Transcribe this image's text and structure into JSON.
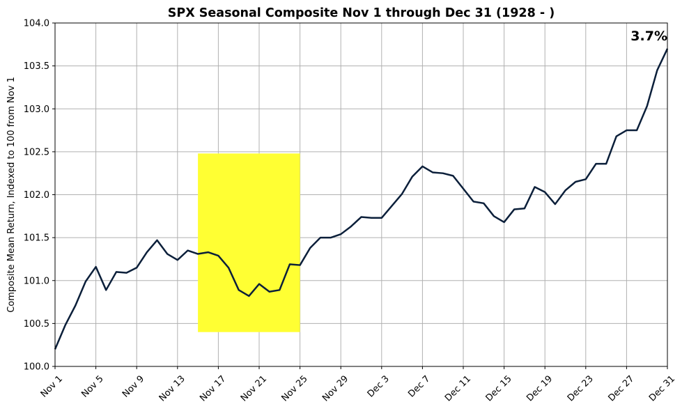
{
  "chart_data": {
    "type": "line",
    "title": "SPX Seasonal Composite Nov 1 through Dec 31 (1928 - )",
    "xlabel": "",
    "ylabel": "Composite Mean Return, Indexed to 100 from Nov 1",
    "ylim": [
      100.0,
      104.0
    ],
    "yticks": [
      "100.0",
      "100.5",
      "101.0",
      "101.5",
      "102.0",
      "102.5",
      "103.0",
      "103.5",
      "104.0"
    ],
    "xticks": [
      "Nov 1",
      "Nov 5",
      "Nov 9",
      "Nov 13",
      "Nov 17",
      "Nov 21",
      "Nov 25",
      "Nov 29",
      "Dec 3",
      "Dec 7",
      "Dec 11",
      "Dec 15",
      "Dec 19",
      "Dec 23",
      "Dec 27",
      "Dec 31"
    ],
    "grid": true,
    "line_color": "#0b1f3a",
    "highlight": {
      "from": "Nov 15",
      "to": "Nov 25",
      "ymin": 100.4,
      "ymax": 102.48,
      "color": "#ffff33"
    },
    "annotation": "3.7%",
    "series": [
      {
        "x": [
          "Nov 1",
          "Nov 2",
          "Nov 3",
          "Nov 4",
          "Nov 5",
          "Nov 6",
          "Nov 7",
          "Nov 8",
          "Nov 9",
          "Nov 10",
          "Nov 11",
          "Nov 12",
          "Nov 13",
          "Nov 14",
          "Nov 15",
          "Nov 16",
          "Nov 17",
          "Nov 18",
          "Nov 19",
          "Nov 20",
          "Nov 21",
          "Nov 22",
          "Nov 23",
          "Nov 24",
          "Nov 25",
          "Nov 26",
          "Nov 27",
          "Nov 28",
          "Nov 29",
          "Nov 30",
          "Dec 1",
          "Dec 2",
          "Dec 3",
          "Dec 4",
          "Dec 5",
          "Dec 6",
          "Dec 7",
          "Dec 8",
          "Dec 9",
          "Dec 10",
          "Dec 11",
          "Dec 12",
          "Dec 13",
          "Dec 14",
          "Dec 15",
          "Dec 16",
          "Dec 17",
          "Dec 18",
          "Dec 19",
          "Dec 20",
          "Dec 21",
          "Dec 22",
          "Dec 23",
          "Dec 24",
          "Dec 25",
          "Dec 26",
          "Dec 27",
          "Dec 28",
          "Dec 29",
          "Dec 30",
          "Dec 31"
        ],
        "values": [
          100.2,
          100.48,
          100.71,
          100.99,
          101.16,
          100.89,
          101.1,
          101.09,
          101.15,
          101.33,
          101.47,
          101.31,
          101.24,
          101.35,
          101.31,
          101.33,
          101.29,
          101.15,
          100.89,
          100.82,
          100.96,
          100.87,
          100.89,
          101.19,
          101.18,
          101.38,
          101.5,
          101.5,
          101.54,
          101.63,
          101.74,
          101.73,
          101.73,
          101.87,
          102.01,
          102.21,
          102.33,
          102.26,
          102.25,
          102.22,
          102.07,
          101.92,
          101.9,
          101.75,
          101.68,
          101.83,
          101.84,
          102.09,
          102.03,
          101.89,
          102.05,
          102.15,
          102.18,
          102.36,
          102.36,
          102.68,
          102.75,
          102.75,
          103.03,
          103.45,
          103.7
        ]
      }
    ]
  }
}
